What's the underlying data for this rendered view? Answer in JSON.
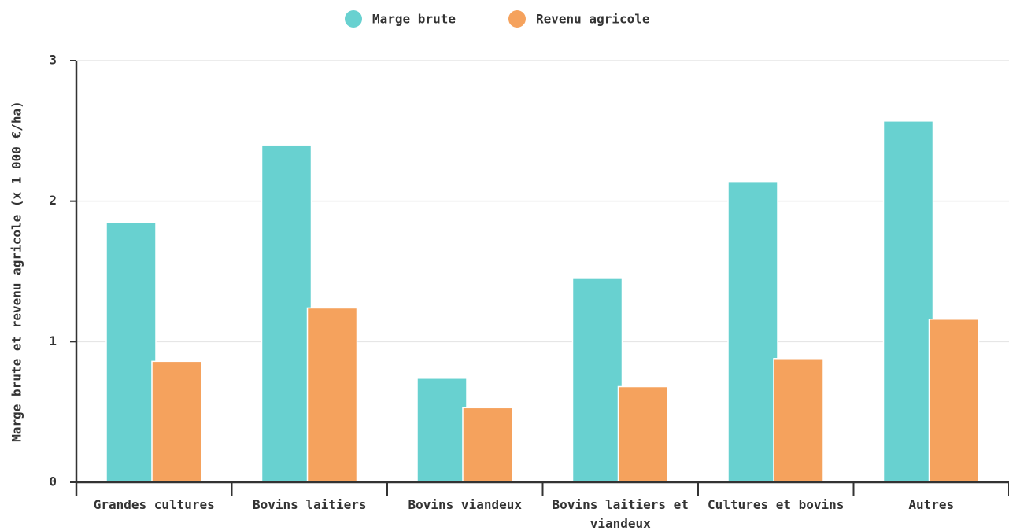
{
  "chart_data": {
    "type": "bar",
    "ylabel": "Marge brute et revenu agricole (x 1 000 €/ha)",
    "categories": [
      "Grandes cultures",
      "Bovins laitiers",
      "Bovins viandeux",
      "Bovins laitiers et viandeux",
      "Cultures et bovins",
      "Autres"
    ],
    "series": [
      {
        "name": "Marge brute",
        "color": "#68d1d0",
        "values": [
          1.85,
          2.4,
          0.74,
          1.45,
          2.14,
          2.57
        ]
      },
      {
        "name": "Revenu agricole",
        "color": "#f5a25d",
        "values": [
          0.86,
          1.24,
          0.53,
          0.68,
          0.88,
          1.16
        ]
      }
    ],
    "ylim": [
      0,
      3
    ],
    "yticks": [
      0,
      1,
      2,
      3
    ],
    "grid": true,
    "legend": "top"
  }
}
